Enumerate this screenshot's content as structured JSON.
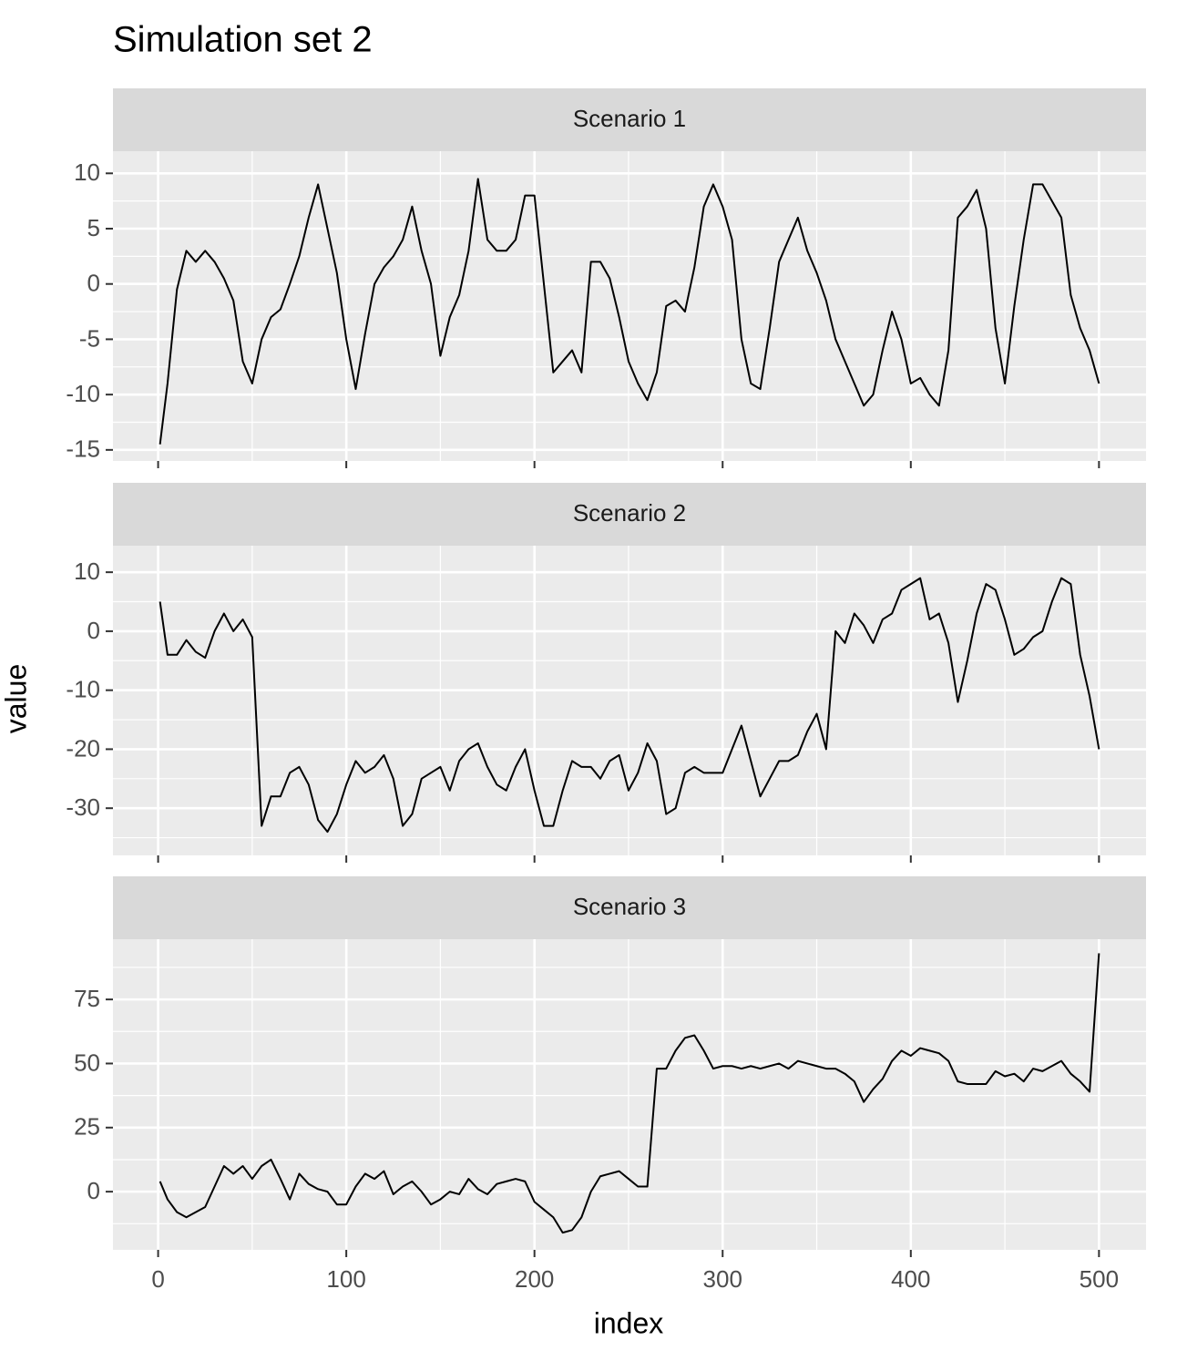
{
  "title": "Simulation set 2",
  "x_label": "index",
  "y_label": "value",
  "chart_data": [
    {
      "type": "line",
      "title": "Scenario 1",
      "color": "#000000",
      "grid": true,
      "x": [
        1,
        5,
        10,
        15,
        20,
        25,
        30,
        35,
        40,
        45,
        50,
        55,
        60,
        65,
        70,
        75,
        80,
        85,
        90,
        95,
        100,
        105,
        110,
        115,
        120,
        125,
        130,
        135,
        140,
        145,
        150,
        155,
        160,
        165,
        170,
        175,
        180,
        185,
        190,
        195,
        200,
        205,
        210,
        215,
        220,
        225,
        230,
        235,
        240,
        245,
        250,
        255,
        260,
        265,
        270,
        275,
        280,
        285,
        290,
        295,
        300,
        305,
        310,
        315,
        320,
        325,
        330,
        335,
        340,
        345,
        350,
        355,
        360,
        365,
        370,
        375,
        380,
        385,
        390,
        395,
        400,
        405,
        410,
        415,
        420,
        425,
        430,
        435,
        440,
        445,
        450,
        455,
        460,
        465,
        470,
        475,
        480,
        485,
        490,
        495,
        500
      ],
      "values": [
        -14.5,
        -9,
        -0.5,
        3,
        2,
        3,
        2,
        0.5,
        -1.5,
        -7,
        -9,
        -5,
        -3,
        -2.3,
        0,
        2.5,
        6,
        9,
        5,
        1,
        -5,
        -9.5,
        -4.5,
        0,
        1.5,
        2.5,
        4,
        7,
        3,
        0,
        -6.5,
        -3,
        -1,
        3,
        9.5,
        4,
        3,
        3,
        4,
        8,
        8,
        0,
        -8,
        -7,
        -6,
        -8,
        2,
        2,
        0.5,
        -3,
        -7,
        -9,
        -10.5,
        -8,
        -2,
        -1.5,
        -2.5,
        1.5,
        7,
        9,
        7,
        4,
        -5,
        -9,
        -9.5,
        -4,
        2,
        4,
        6,
        3,
        1,
        -1.5,
        -5,
        -7,
        -9,
        -11,
        -10,
        -6,
        -2.5,
        -5,
        -9,
        -8.5,
        -10,
        -11,
        -6,
        6,
        7,
        8.5,
        5,
        -4,
        -9,
        -2,
        4,
        9,
        9,
        7.5,
        6,
        -1,
        -4,
        -6,
        -9
      ],
      "xlim": [
        -24,
        525
      ],
      "xticks": [
        0,
        100,
        200,
        300,
        400,
        500
      ],
      "ylim": [
        -16,
        12
      ],
      "yticks": [
        -15,
        -10,
        -5,
        0,
        5,
        10
      ]
    },
    {
      "type": "line",
      "title": "Scenario 2",
      "color": "#000000",
      "grid": true,
      "x": [
        1,
        5,
        10,
        15,
        20,
        25,
        30,
        35,
        40,
        45,
        50,
        55,
        60,
        65,
        70,
        75,
        80,
        85,
        90,
        95,
        100,
        105,
        110,
        115,
        120,
        125,
        130,
        135,
        140,
        145,
        150,
        155,
        160,
        165,
        170,
        175,
        180,
        185,
        190,
        195,
        200,
        205,
        210,
        215,
        220,
        225,
        230,
        235,
        240,
        245,
        250,
        255,
        260,
        265,
        270,
        275,
        280,
        285,
        290,
        295,
        300,
        305,
        310,
        315,
        320,
        325,
        330,
        335,
        340,
        345,
        350,
        355,
        360,
        365,
        370,
        375,
        380,
        385,
        390,
        395,
        400,
        405,
        410,
        415,
        420,
        425,
        430,
        435,
        440,
        445,
        450,
        455,
        460,
        465,
        470,
        475,
        480,
        485,
        490,
        495,
        500
      ],
      "values": [
        5,
        -4,
        -4,
        -1.5,
        -3.5,
        -4.5,
        0,
        3,
        0,
        2,
        -1,
        -33,
        -28,
        -28,
        -24,
        -23,
        -26,
        -32,
        -34,
        -31,
        -26,
        -22,
        -24,
        -23,
        -21,
        -25,
        -33,
        -31,
        -25,
        -24,
        -23,
        -27,
        -22,
        -20,
        -19,
        -23,
        -26,
        -27,
        -23,
        -20,
        -27,
        -33,
        -33,
        -27,
        -22,
        -23,
        -23,
        -25,
        -22,
        -21,
        -27,
        -24,
        -19,
        -22,
        -31,
        -30,
        -24,
        -23,
        -24,
        -24,
        -24,
        -20,
        -16,
        -22,
        -28,
        -25,
        -22,
        -22,
        -21,
        -17,
        -14,
        -20,
        0,
        -2,
        3,
        1,
        -2,
        2,
        3,
        7,
        8,
        9,
        2,
        3,
        -2,
        -12,
        -5,
        3,
        8,
        7,
        2,
        -4,
        -3,
        -1,
        0,
        5,
        9,
        8,
        -4,
        -11,
        -20
      ],
      "xlim": [
        -24,
        525
      ],
      "xticks": [
        0,
        100,
        200,
        300,
        400,
        500
      ],
      "ylim": [
        -38,
        14.5
      ],
      "yticks": [
        -30,
        -20,
        -10,
        0,
        10
      ]
    },
    {
      "type": "line",
      "title": "Scenario 3",
      "color": "#000000",
      "grid": true,
      "x": [
        1,
        5,
        10,
        15,
        20,
        25,
        30,
        35,
        40,
        45,
        50,
        55,
        60,
        65,
        70,
        75,
        80,
        85,
        90,
        95,
        100,
        105,
        110,
        115,
        120,
        125,
        130,
        135,
        140,
        145,
        150,
        155,
        160,
        165,
        170,
        175,
        180,
        185,
        190,
        195,
        200,
        205,
        210,
        215,
        220,
        225,
        230,
        235,
        240,
        245,
        250,
        255,
        260,
        265,
        270,
        275,
        280,
        285,
        290,
        295,
        300,
        305,
        310,
        315,
        320,
        325,
        330,
        335,
        340,
        345,
        350,
        355,
        360,
        365,
        370,
        375,
        380,
        385,
        390,
        395,
        400,
        405,
        410,
        415,
        420,
        425,
        430,
        435,
        440,
        445,
        450,
        455,
        460,
        465,
        470,
        475,
        480,
        485,
        490,
        495,
        500
      ],
      "values": [
        4,
        -3,
        -8,
        -10,
        -8,
        -6,
        2,
        10,
        7,
        10,
        5,
        10,
        12.5,
        5,
        -3,
        7,
        3,
        1,
        0,
        -5,
        -5,
        2,
        7,
        5,
        8,
        -1,
        2,
        4,
        0,
        -5,
        -3,
        0,
        -1,
        5,
        1,
        -1,
        3,
        4,
        5,
        4,
        -4,
        -7,
        -10,
        -16,
        -15,
        -10,
        0,
        6,
        7,
        8,
        5,
        2,
        2,
        48,
        48,
        55,
        60,
        61,
        55,
        48,
        49,
        49,
        48,
        49,
        48,
        49,
        50,
        48,
        51,
        50,
        49,
        48,
        48,
        46,
        43,
        35,
        40,
        44,
        51,
        55,
        53,
        56,
        55,
        54,
        51,
        43,
        42,
        42,
        42,
        47,
        45,
        46,
        43,
        48,
        47,
        49,
        51,
        46,
        43,
        39,
        93
      ],
      "xlim": [
        -24,
        525
      ],
      "xticks": [
        0,
        100,
        200,
        300,
        400,
        500
      ],
      "ylim": [
        -22.7,
        98.5
      ],
      "yticks": [
        0,
        25,
        50,
        75
      ]
    }
  ]
}
